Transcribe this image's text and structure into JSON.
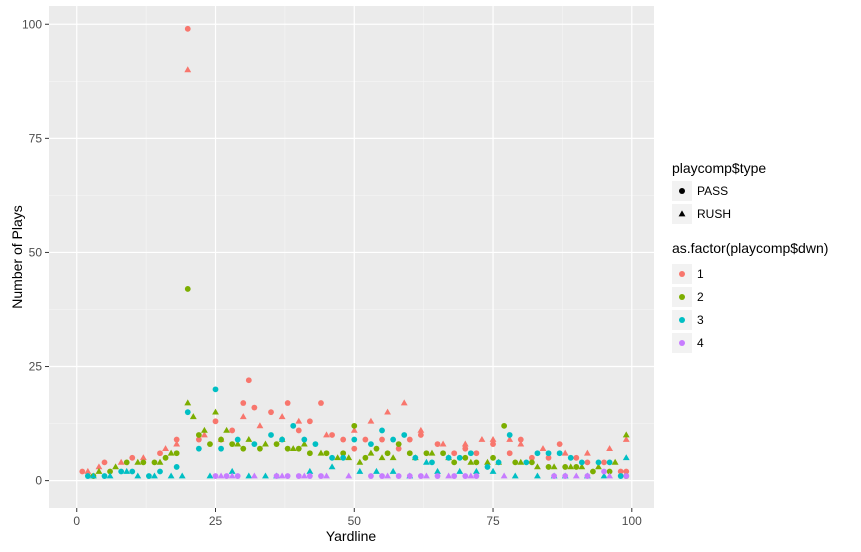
{
  "chart_data": {
    "type": "scatter",
    "xlabel": "Yardline",
    "ylabel": "Number of Plays",
    "xlim": [
      -5,
      104
    ],
    "ylim": [
      -6,
      104
    ],
    "x_ticks": [
      0,
      25,
      50,
      75,
      100
    ],
    "y_ticks": [
      0,
      25,
      50,
      75,
      100
    ],
    "grid": true,
    "panel_background": "#ebebeb",
    "legend_position": "right",
    "legend_shape": {
      "title": "playcomp$type",
      "entries": [
        {
          "label": "PASS",
          "shape": "circle"
        },
        {
          "label": "RUSH",
          "shape": "triangle"
        }
      ]
    },
    "legend_color": {
      "title": "as.factor(playcomp$dwn)",
      "entries": [
        {
          "label": "1",
          "color": "#F8766D"
        },
        {
          "label": "2",
          "color": "#7CAE00"
        },
        {
          "label": "3",
          "color": "#00BFC4"
        },
        {
          "label": "4",
          "color": "#C77CFF"
        }
      ]
    },
    "series": [
      {
        "type": "PASS",
        "dwn": "1",
        "color": "#F8766D",
        "shape": "circle",
        "points": [
          [
            1,
            2
          ],
          [
            5,
            4
          ],
          [
            10,
            5
          ],
          [
            15,
            6
          ],
          [
            18,
            9
          ],
          [
            20,
            99
          ],
          [
            22,
            9
          ],
          [
            25,
            13
          ],
          [
            28,
            11
          ],
          [
            30,
            17
          ],
          [
            31,
            22
          ],
          [
            32,
            16
          ],
          [
            35,
            15
          ],
          [
            38,
            17
          ],
          [
            40,
            11
          ],
          [
            42,
            13
          ],
          [
            44,
            17
          ],
          [
            46,
            10
          ],
          [
            48,
            9
          ],
          [
            50,
            7
          ],
          [
            52,
            9
          ],
          [
            55,
            9
          ],
          [
            58,
            7
          ],
          [
            60,
            9
          ],
          [
            62,
            10
          ],
          [
            65,
            8
          ],
          [
            68,
            6
          ],
          [
            70,
            7
          ],
          [
            72,
            6
          ],
          [
            75,
            8
          ],
          [
            78,
            6
          ],
          [
            80,
            9
          ],
          [
            82,
            5
          ],
          [
            85,
            5
          ],
          [
            87,
            8
          ],
          [
            90,
            5
          ],
          [
            92,
            4
          ],
          [
            95,
            4
          ],
          [
            98,
            2
          ],
          [
            99,
            2
          ]
        ]
      },
      {
        "type": "RUSH",
        "dwn": "1",
        "color": "#F8766D",
        "shape": "triangle",
        "points": [
          [
            2,
            2
          ],
          [
            4,
            3
          ],
          [
            8,
            4
          ],
          [
            12,
            5
          ],
          [
            16,
            7
          ],
          [
            18,
            8
          ],
          [
            20,
            90
          ],
          [
            23,
            10
          ],
          [
            26,
            9
          ],
          [
            30,
            14
          ],
          [
            33,
            12
          ],
          [
            37,
            14
          ],
          [
            40,
            13
          ],
          [
            45,
            10
          ],
          [
            50,
            11
          ],
          [
            53,
            13
          ],
          [
            56,
            15
          ],
          [
            59,
            17
          ],
          [
            62,
            11
          ],
          [
            66,
            8
          ],
          [
            70,
            8
          ],
          [
            73,
            9
          ],
          [
            75,
            9
          ],
          [
            78,
            9
          ],
          [
            80,
            8
          ],
          [
            84,
            7
          ],
          [
            88,
            6
          ],
          [
            92,
            6
          ],
          [
            96,
            7
          ],
          [
            99,
            9
          ]
        ]
      },
      {
        "type": "PASS",
        "dwn": "2",
        "color": "#7CAE00",
        "shape": "circle",
        "points": [
          [
            3,
            1
          ],
          [
            6,
            2
          ],
          [
            9,
            4
          ],
          [
            12,
            4
          ],
          [
            14,
            4
          ],
          [
            16,
            5
          ],
          [
            18,
            6
          ],
          [
            20,
            42
          ],
          [
            22,
            10
          ],
          [
            24,
            8
          ],
          [
            26,
            9
          ],
          [
            28,
            8
          ],
          [
            30,
            7
          ],
          [
            33,
            7
          ],
          [
            36,
            8
          ],
          [
            38,
            7
          ],
          [
            40,
            7
          ],
          [
            42,
            6
          ],
          [
            45,
            6
          ],
          [
            48,
            6
          ],
          [
            50,
            12
          ],
          [
            52,
            5
          ],
          [
            54,
            7
          ],
          [
            56,
            6
          ],
          [
            58,
            8
          ],
          [
            60,
            6
          ],
          [
            63,
            6
          ],
          [
            66,
            6
          ],
          [
            68,
            4
          ],
          [
            70,
            5
          ],
          [
            72,
            4
          ],
          [
            75,
            5
          ],
          [
            77,
            12
          ],
          [
            79,
            4
          ],
          [
            82,
            4
          ],
          [
            85,
            3
          ],
          [
            88,
            3
          ],
          [
            90,
            3
          ],
          [
            93,
            2
          ],
          [
            96,
            2
          ],
          [
            99,
            1
          ]
        ]
      },
      {
        "type": "RUSH",
        "dwn": "2",
        "color": "#7CAE00",
        "shape": "triangle",
        "points": [
          [
            4,
            2
          ],
          [
            7,
            3
          ],
          [
            11,
            4
          ],
          [
            15,
            4
          ],
          [
            17,
            6
          ],
          [
            20,
            17
          ],
          [
            21,
            14
          ],
          [
            23,
            11
          ],
          [
            25,
            15
          ],
          [
            27,
            11
          ],
          [
            29,
            8
          ],
          [
            31,
            9
          ],
          [
            34,
            8
          ],
          [
            37,
            9
          ],
          [
            39,
            7
          ],
          [
            41,
            8
          ],
          [
            44,
            6
          ],
          [
            47,
            5
          ],
          [
            49,
            5
          ],
          [
            51,
            4
          ],
          [
            53,
            6
          ],
          [
            55,
            5
          ],
          [
            57,
            5
          ],
          [
            61,
            5
          ],
          [
            64,
            6
          ],
          [
            67,
            5
          ],
          [
            71,
            4
          ],
          [
            74,
            4
          ],
          [
            76,
            4
          ],
          [
            80,
            4
          ],
          [
            83,
            3
          ],
          [
            86,
            3
          ],
          [
            89,
            3
          ],
          [
            91,
            3
          ],
          [
            94,
            3
          ],
          [
            97,
            4
          ],
          [
            99,
            10
          ]
        ]
      },
      {
        "type": "PASS",
        "dwn": "3",
        "color": "#00BFC4",
        "shape": "circle",
        "points": [
          [
            2,
            1
          ],
          [
            5,
            1
          ],
          [
            8,
            2
          ],
          [
            10,
            2
          ],
          [
            13,
            1
          ],
          [
            15,
            2
          ],
          [
            18,
            3
          ],
          [
            20,
            15
          ],
          [
            22,
            7
          ],
          [
            25,
            20
          ],
          [
            26,
            7
          ],
          [
            29,
            9
          ],
          [
            32,
            8
          ],
          [
            35,
            10
          ],
          [
            37,
            9
          ],
          [
            39,
            12
          ],
          [
            41,
            9
          ],
          [
            43,
            8
          ],
          [
            46,
            5
          ],
          [
            48,
            5
          ],
          [
            50,
            9
          ],
          [
            53,
            8
          ],
          [
            55,
            11
          ],
          [
            57,
            9
          ],
          [
            59,
            10
          ],
          [
            61,
            5
          ],
          [
            64,
            4
          ],
          [
            67,
            5
          ],
          [
            69,
            5
          ],
          [
            71,
            6
          ],
          [
            74,
            3
          ],
          [
            76,
            4
          ],
          [
            78,
            10
          ],
          [
            81,
            4
          ],
          [
            83,
            6
          ],
          [
            85,
            6
          ],
          [
            87,
            6
          ],
          [
            89,
            5
          ],
          [
            91,
            4
          ],
          [
            94,
            4
          ],
          [
            96,
            4
          ],
          [
            98,
            1
          ]
        ]
      },
      {
        "type": "RUSH",
        "dwn": "3",
        "color": "#00BFC4",
        "shape": "triangle",
        "points": [
          [
            3,
            1
          ],
          [
            6,
            1
          ],
          [
            9,
            2
          ],
          [
            11,
            1
          ],
          [
            14,
            1
          ],
          [
            17,
            1
          ],
          [
            19,
            1
          ],
          [
            24,
            1
          ],
          [
            28,
            2
          ],
          [
            31,
            1
          ],
          [
            34,
            1
          ],
          [
            36,
            1
          ],
          [
            42,
            2
          ],
          [
            46,
            3
          ],
          [
            51,
            2
          ],
          [
            54,
            2
          ],
          [
            57,
            2
          ],
          [
            60,
            1
          ],
          [
            63,
            4
          ],
          [
            65,
            2
          ],
          [
            69,
            2
          ],
          [
            72,
            2
          ],
          [
            75,
            2
          ],
          [
            79,
            1
          ],
          [
            83,
            1
          ],
          [
            86,
            1
          ],
          [
            88,
            1
          ],
          [
            92,
            1
          ],
          [
            95,
            1
          ],
          [
            99,
            5
          ]
        ]
      },
      {
        "type": "PASS",
        "dwn": "4",
        "color": "#C77CFF",
        "shape": "circle",
        "points": [
          [
            25,
            1
          ],
          [
            27,
            1
          ],
          [
            29,
            1
          ],
          [
            36,
            1
          ],
          [
            38,
            1
          ],
          [
            40,
            1
          ],
          [
            42,
            1
          ],
          [
            44,
            1
          ],
          [
            53,
            1
          ],
          [
            55,
            1
          ],
          [
            58,
            1
          ],
          [
            60,
            1
          ],
          [
            62,
            1
          ],
          [
            65,
            1
          ],
          [
            68,
            1
          ],
          [
            70,
            1
          ],
          [
            72,
            1
          ],
          [
            86,
            1
          ],
          [
            88,
            1
          ],
          [
            92,
            1
          ],
          [
            95,
            2
          ],
          [
            99,
            1
          ]
        ]
      },
      {
        "type": "RUSH",
        "dwn": "4",
        "color": "#C77CFF",
        "shape": "triangle",
        "points": [
          [
            26,
            1
          ],
          [
            28,
            1
          ],
          [
            32,
            1
          ],
          [
            37,
            1
          ],
          [
            41,
            1
          ],
          [
            45,
            1
          ],
          [
            49,
            1
          ],
          [
            56,
            1
          ],
          [
            63,
            1
          ],
          [
            67,
            1
          ],
          [
            71,
            1
          ],
          [
            77,
            1
          ],
          [
            90,
            1
          ],
          [
            96,
            1
          ]
        ]
      }
    ]
  }
}
